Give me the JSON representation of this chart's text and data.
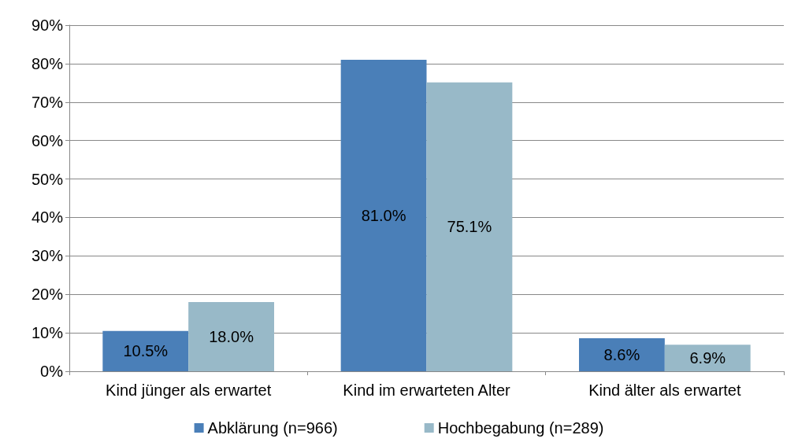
{
  "chart_data": {
    "type": "bar",
    "categories": [
      "Kind jünger als erwartet",
      "Kind im erwarteten Alter",
      "Kind älter als erwartet"
    ],
    "series": [
      {
        "name": "Abklärung (n=966)",
        "color": "#4a7fb8",
        "values": [
          10.5,
          81.0,
          8.6
        ],
        "value_labels": [
          "10.5%",
          "81.0%",
          "8.6%"
        ]
      },
      {
        "name": "Hochbegabung (n=289)",
        "color": "#98b9c8",
        "values": [
          18.0,
          75.1,
          6.9
        ],
        "value_labels": [
          "18.0%",
          "75.1%",
          "6.9%"
        ]
      }
    ],
    "ylim": [
      0,
      90
    ],
    "yticks": [
      {
        "value": 0,
        "label": "0%"
      },
      {
        "value": 10,
        "label": "10%"
      },
      {
        "value": 20,
        "label": "20%"
      },
      {
        "value": 30,
        "label": "30%"
      },
      {
        "value": 40,
        "label": "40%"
      },
      {
        "value": 50,
        "label": "50%"
      },
      {
        "value": 60,
        "label": "60%"
      },
      {
        "value": 70,
        "label": "70%"
      },
      {
        "value": 80,
        "label": "80%"
      },
      {
        "value": 90,
        "label": "90%"
      }
    ],
    "grid": "y",
    "legend": "bottom"
  }
}
